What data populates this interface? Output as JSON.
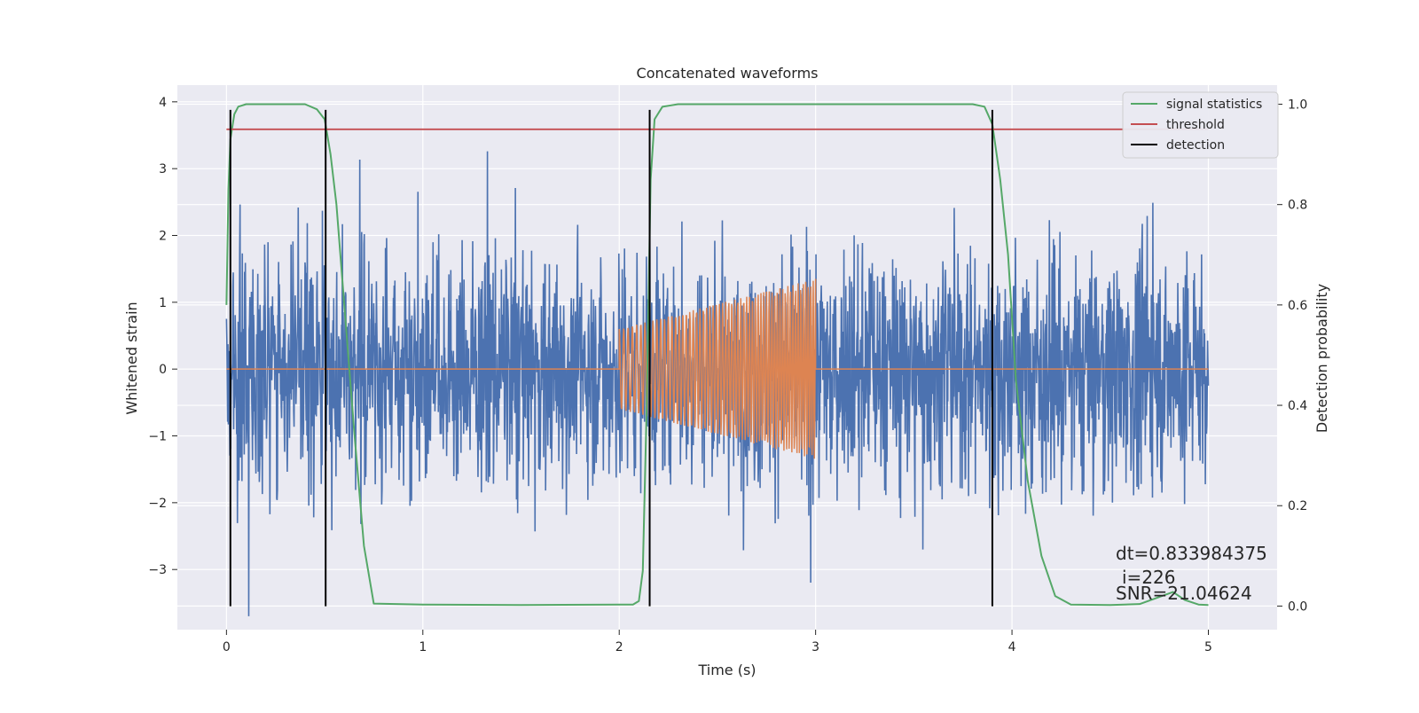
{
  "chart_data": {
    "type": "line",
    "title": "Concatenated waveforms",
    "xlabel": "Time (s)",
    "ylabel": "Whitened strain",
    "ylabel_right": "Detection probability",
    "xlim": [
      -0.25,
      5.35
    ],
    "ylim": [
      -3.9,
      4.25
    ],
    "ylim_right": [
      -0.047,
      1.038
    ],
    "xticks": [
      0,
      1,
      2,
      3,
      4,
      5
    ],
    "xtick_labels": [
      "0",
      "1",
      "2",
      "3",
      "4",
      "5"
    ],
    "yticks": [
      4,
      3,
      2,
      1,
      0,
      -1,
      -2,
      -3
    ],
    "ytick_labels": [
      "4",
      "3",
      "2",
      "1",
      "0",
      "−1",
      "−2",
      "−3"
    ],
    "yticks_right": [
      1.0,
      0.8,
      0.6,
      0.4,
      0.2,
      0.0
    ],
    "ytick_labels_right": [
      "1.0",
      "0.8",
      "0.6",
      "0.4",
      "0.2",
      "0.0"
    ],
    "grid": true,
    "legend_position": "top-right",
    "series": [
      {
        "key": "strain",
        "axis": "left",
        "color": "#4c72b0",
        "description_points": "whitened noise, approx. +-2.5 typical with spikes to about +-3.8, sampled across 0-5 s",
        "seed": 7
      },
      {
        "key": "injected",
        "axis": "left",
        "color": "#dd8452",
        "t_start": 2.0,
        "t_end": 3.0,
        "amp_start": 0.6,
        "amp_end": 1.35,
        "cycles": 62
      },
      {
        "name": "signal statistics",
        "axis": "right",
        "color": "#55a868",
        "x": [
          0.0,
          0.01,
          0.02,
          0.04,
          0.06,
          0.1,
          0.2,
          0.4,
          0.46,
          0.5,
          0.53,
          0.56,
          0.6,
          0.65,
          0.7,
          0.75,
          1.0,
          1.5,
          2.0,
          2.07,
          2.1,
          2.12,
          2.14,
          2.16,
          2.18,
          2.22,
          2.3,
          3.0,
          3.8,
          3.86,
          3.9,
          3.94,
          3.98,
          4.02,
          4.08,
          4.15,
          4.22,
          4.3,
          4.5,
          4.65,
          4.75,
          4.82,
          4.88,
          4.95,
          5.0
        ],
        "y": [
          0.6,
          0.83,
          0.93,
          0.98,
          0.995,
          1.0,
          1.0,
          1.0,
          0.99,
          0.97,
          0.9,
          0.8,
          0.6,
          0.35,
          0.12,
          0.005,
          0.003,
          0.002,
          0.003,
          0.003,
          0.01,
          0.07,
          0.4,
          0.85,
          0.97,
          0.995,
          1.0,
          1.0,
          1.0,
          0.995,
          0.96,
          0.85,
          0.7,
          0.45,
          0.25,
          0.1,
          0.02,
          0.003,
          0.002,
          0.004,
          0.018,
          0.028,
          0.012,
          0.003,
          0.002
        ]
      },
      {
        "name": "threshold",
        "axis": "right",
        "color": "#c44e52",
        "x": [
          0.0,
          5.0
        ],
        "y": [
          0.95,
          0.95
        ]
      },
      {
        "name": "detection",
        "axis": "left",
        "color": "#000000",
        "x_positions": [
          0.02,
          0.505,
          2.155,
          3.9
        ],
        "y_range": [
          -3.55,
          3.88
        ]
      }
    ],
    "annotations": [
      "dt=0.833984375",
      "i=226",
      "SNR=21.04624"
    ]
  }
}
